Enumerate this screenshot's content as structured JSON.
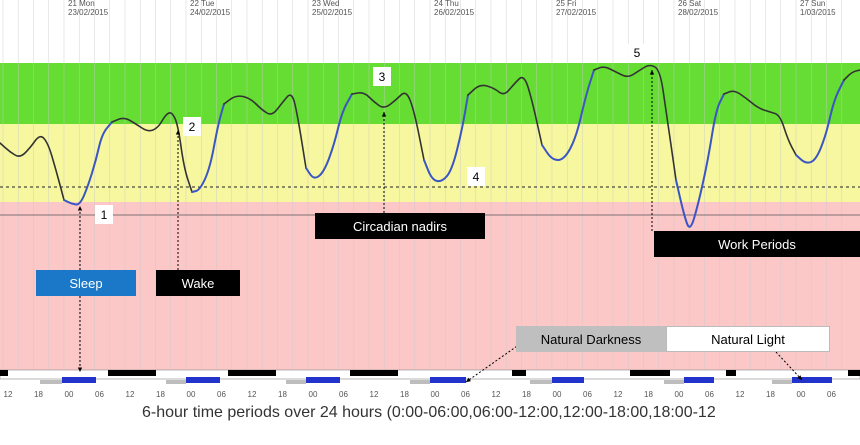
{
  "chart_data": {
    "type": "line",
    "title": "",
    "xlabel": "6-hour time periods over 24 hours (0:00-06:00,06:00-12:00,12:00-18:00,18:00-12",
    "ylabel": "",
    "days": [
      {
        "day": "21 Mon",
        "date": "23/02/2015"
      },
      {
        "day": "22 Tue",
        "date": "24/02/2015"
      },
      {
        "day": "23 Wed",
        "date": "25/02/2015"
      },
      {
        "day": "24 Thu",
        "date": "26/02/2015"
      },
      {
        "day": "25 Fri",
        "date": "27/02/2015"
      },
      {
        "day": "26 Sat",
        "date": "28/02/2015"
      },
      {
        "day": "27 Sun",
        "date": "1/03/2015"
      }
    ],
    "hour_ticks": [
      "12",
      "18",
      "00",
      "06"
    ],
    "annotations": {
      "sleep": "Sleep",
      "wake": "Wake",
      "circadian_nadirs": "Circadian nadirs",
      "work_periods": "Work Periods",
      "natural_darkness": "Natural Darkness",
      "natural_light": "Natural Light",
      "markers": [
        "1",
        "2",
        "3",
        "4",
        "5"
      ]
    },
    "colors": {
      "green_zone": "#66dd33",
      "yellow_zone": "#f7f7a0",
      "red_zone": "#fbc7c7",
      "awake_line": "#333333",
      "sleep_line": "#3b55c4",
      "sleep_label_bg": "#1b78c8",
      "dark_label_bg": "#000000",
      "darkness_label_bg": "#bfbfbf"
    }
  }
}
